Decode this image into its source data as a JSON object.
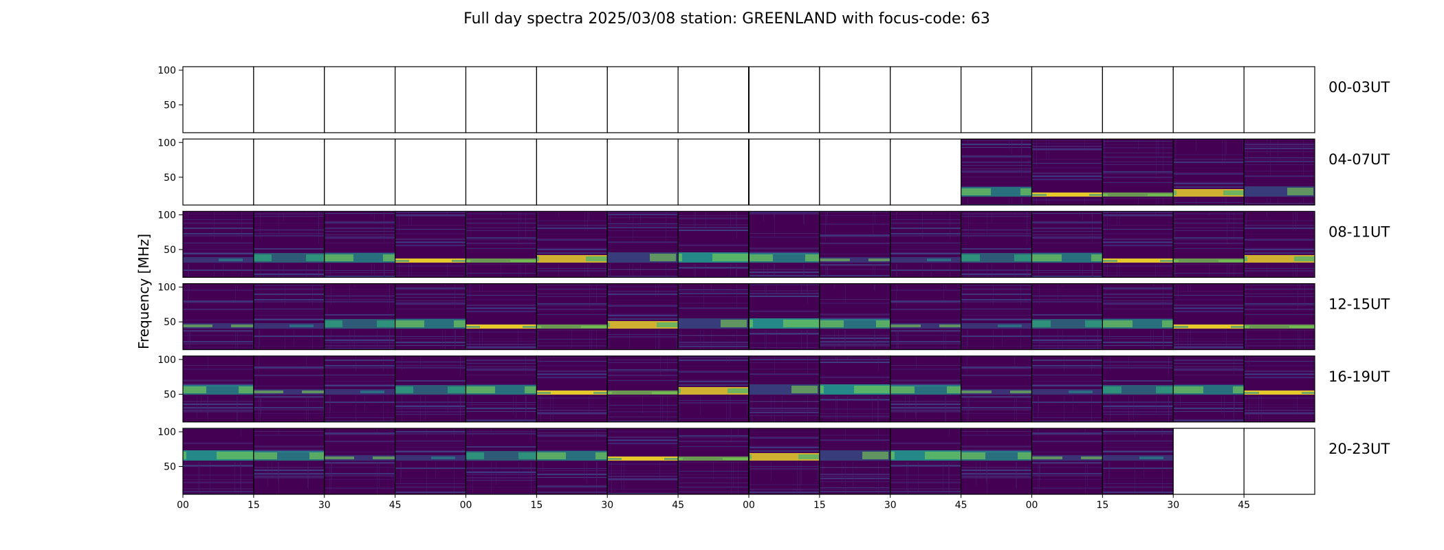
{
  "title": "Full day spectra 2025/03/08 station: GREENLAND with focus-code: 63",
  "ylabel": "Frequency [MHz]",
  "colors": {
    "empty": "#ffffff",
    "frame": "#000000",
    "viridis_low": "#440154",
    "viridis_mid": "#21918c",
    "viridis_high": "#fde725"
  },
  "chart_data": {
    "type": "heatmap",
    "colormap": "viridis",
    "title": "Full day spectra 2025/03/08 station: GREENLAND with focus-code: 63",
    "ylabel": "Frequency [MHz]",
    "ylim": [
      10,
      105
    ],
    "y_ticks": [
      "100",
      "50"
    ],
    "x_ticks": [
      "00",
      "15",
      "30",
      "45",
      "00",
      "15",
      "30",
      "45",
      "00",
      "15",
      "30",
      "45",
      "00",
      "15",
      "30",
      "45"
    ],
    "minutes_per_panel": 15,
    "panels_per_row": 16,
    "rows": [
      {
        "label": "00-03UT",
        "filled": [
          0,
          0,
          0,
          0,
          0,
          0,
          0,
          0,
          0,
          0,
          0,
          0,
          0,
          0,
          0,
          0
        ]
      },
      {
        "label": "04-07UT",
        "filled": [
          0,
          0,
          0,
          0,
          0,
          0,
          0,
          0,
          0,
          0,
          0,
          1,
          1,
          1,
          1,
          1
        ]
      },
      {
        "label": "08-11UT",
        "filled": [
          1,
          1,
          1,
          1,
          1,
          1,
          1,
          1,
          1,
          1,
          1,
          1,
          1,
          1,
          1,
          1
        ]
      },
      {
        "label": "12-15UT",
        "filled": [
          1,
          1,
          1,
          1,
          1,
          1,
          1,
          1,
          1,
          1,
          1,
          1,
          1,
          1,
          1,
          1
        ]
      },
      {
        "label": "16-19UT",
        "filled": [
          1,
          1,
          1,
          1,
          1,
          1,
          1,
          1,
          1,
          1,
          1,
          1,
          1,
          1,
          1,
          1
        ]
      },
      {
        "label": "20-23UT",
        "filled": [
          1,
          1,
          1,
          1,
          1,
          1,
          1,
          1,
          1,
          1,
          1,
          1,
          1,
          1,
          0,
          0
        ]
      }
    ]
  }
}
